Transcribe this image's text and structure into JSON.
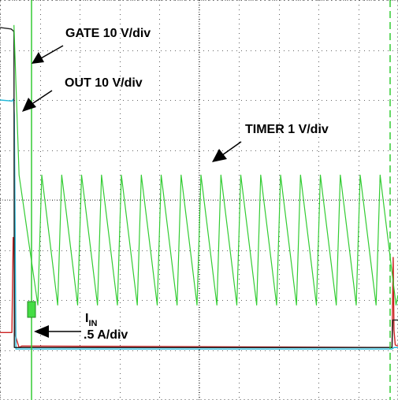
{
  "chart_data": {
    "type": "line",
    "title": "",
    "xlabel": "",
    "ylabel": "",
    "grid": true,
    "grid_divisions": {
      "x": 10,
      "y": 8
    },
    "colors": {
      "timer": "#33cc33",
      "gate": "#222222",
      "out": "#22b8d8",
      "iin": "#cc2222",
      "trigger": "#33cc33"
    },
    "annotations": {
      "gate": "GATE 10 V/div",
      "out": "OUT 10 V/div",
      "timer": "TIMER 1 V/div",
      "iin_main": "I",
      "iin_sub": "IN",
      "iin_scale": ".5 A/div"
    },
    "series": [
      {
        "key": "timer",
        "x": [
          0.35,
          0.48,
          0.95,
          1.05,
          1.45,
          1.55,
          1.95,
          2.05,
          2.45,
          2.55,
          2.95,
          3.05,
          3.45,
          3.55,
          3.95,
          4.05,
          4.45,
          4.55,
          4.95,
          5.05,
          5.45,
          5.55,
          5.95,
          6.05,
          6.45,
          6.55,
          6.95,
          7.05,
          7.45,
          7.55,
          7.95,
          8.05,
          8.45,
          8.55,
          8.95,
          9.05,
          9.45,
          9.55,
          9.95,
          10.0
        ],
        "y": [
          7.5,
          4.5,
          1.9,
          4.5,
          1.9,
          4.5,
          1.9,
          4.5,
          1.9,
          4.5,
          1.9,
          4.5,
          1.9,
          4.5,
          1.9,
          4.5,
          1.9,
          4.5,
          1.9,
          4.5,
          1.9,
          4.5,
          1.9,
          4.5,
          1.9,
          4.5,
          1.9,
          4.5,
          1.9,
          4.5,
          1.9,
          4.5,
          1.9,
          4.5,
          1.9,
          4.5,
          1.9,
          4.5,
          1.9,
          2.1
        ]
      },
      {
        "key": "gate",
        "x": [
          0.0,
          0.28,
          0.34,
          0.35,
          0.36,
          9.85,
          9.87,
          10.0
        ],
        "y": [
          7.45,
          7.42,
          7.38,
          7.35,
          1.05,
          1.05,
          1.6,
          1.6
        ]
      },
      {
        "key": "out",
        "x": [
          0.0,
          0.3,
          0.34,
          0.36,
          0.4,
          9.85,
          9.9,
          10.0
        ],
        "y": [
          6.0,
          5.98,
          6.02,
          5.7,
          1.02,
          1.02,
          1.05,
          1.05
        ]
      },
      {
        "key": "iin",
        "x": [
          0.0,
          0.3,
          0.33,
          0.35,
          0.38,
          0.42,
          0.48,
          0.55,
          9.85,
          9.88,
          9.9,
          9.93,
          10.0
        ],
        "y": [
          1.35,
          1.35,
          3.25,
          3.1,
          1.3,
          1.2,
          1.05,
          1.08,
          1.05,
          2.85,
          1.4,
          1.1,
          1.08
        ]
      }
    ]
  }
}
